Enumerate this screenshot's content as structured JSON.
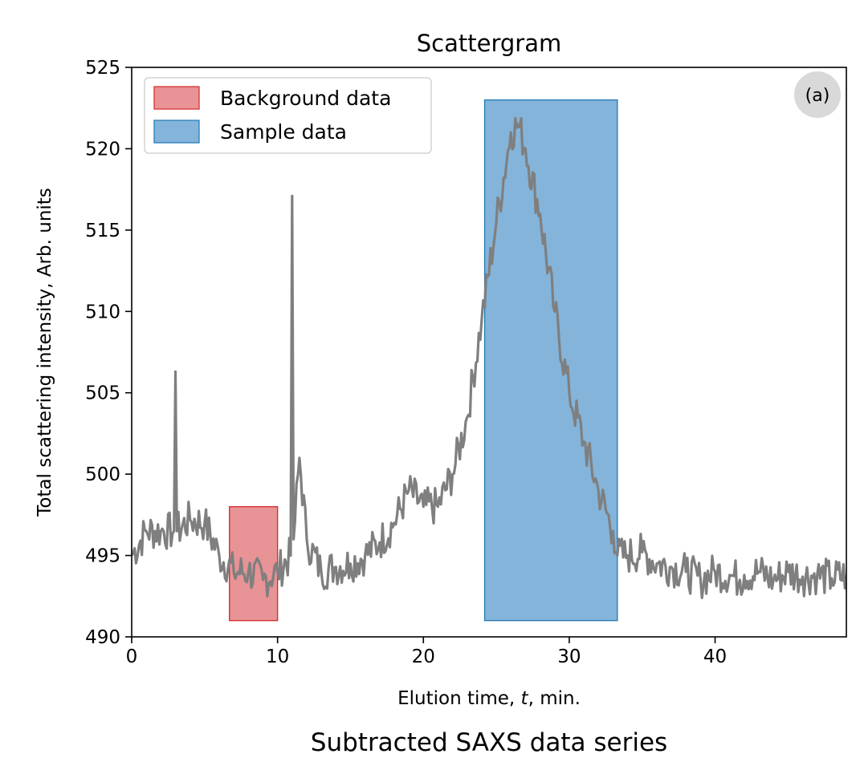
{
  "chart_data": {
    "type": "line",
    "title": "Scattergram",
    "xlabel": "Elution time, ",
    "xlabel_var": "t",
    "xlabel_suffix": ", min.",
    "ylabel": "Total scattering intensity, Arb. units",
    "xlim": [
      0,
      49
    ],
    "ylim": [
      490,
      525
    ],
    "x_ticks": [
      0,
      10,
      20,
      30,
      40
    ],
    "y_ticks": [
      490,
      495,
      500,
      505,
      510,
      515,
      520,
      525
    ],
    "grid": false,
    "legend_position": "top-left",
    "panel_label": "(a)",
    "series": [
      {
        "color": "#7f7f7f",
        "x": [
          0,
          1,
          2,
          2.9,
          3.0,
          3.1,
          4,
          5,
          6,
          7,
          8,
          9,
          10,
          10.9,
          11.0,
          11.1,
          11.5,
          12,
          13,
          14,
          15,
          16,
          17,
          18,
          19,
          20,
          21,
          22,
          23,
          24,
          25,
          26,
          26.5,
          27,
          28,
          29,
          30,
          31,
          32,
          33,
          33.3,
          34,
          35,
          36,
          37,
          38,
          39,
          40,
          41,
          41.7,
          42,
          43,
          44,
          45,
          46,
          47,
          48,
          49
        ],
        "y": [
          495,
          496.5,
          496.5,
          496.5,
          506.3,
          496.5,
          497.2,
          497,
          495,
          494,
          494,
          493.5,
          494,
          495,
          517.1,
          496,
          501,
          496,
          494,
          494.3,
          494.5,
          495,
          495.8,
          497,
          499,
          498,
          498,
          500,
          503.5,
          509.5,
          515.5,
          521,
          521.5,
          520,
          516,
          510,
          505,
          502,
          499,
          496.5,
          495,
          495,
          495.2,
          494.5,
          494.3,
          494,
          493.5,
          494,
          493.8,
          493.5,
          493.8,
          494,
          493.5,
          494,
          493.7,
          493.8,
          493.6,
          493.8
        ]
      }
    ],
    "regions": [
      {
        "name": "Background data",
        "color": "#e06f73",
        "x0": 6.7,
        "x1": 10.0,
        "y0": 491,
        "y1": 498
      },
      {
        "name": "Sample data",
        "color": "#5b9bce",
        "x0": 24.2,
        "x1": 33.3,
        "y0": 491,
        "y1": 523
      }
    ]
  },
  "caption": "Subtracted SAXS data series"
}
